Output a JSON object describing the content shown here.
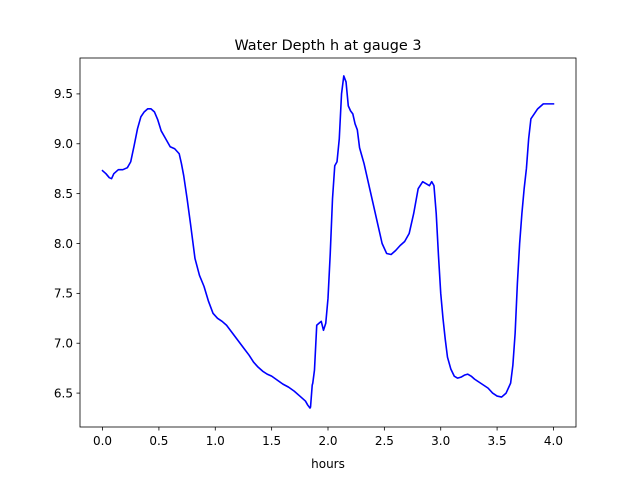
{
  "chart_data": {
    "type": "line",
    "title": "Water Depth h at gauge 3",
    "xlabel": "hours",
    "ylabel": "",
    "xlim": [
      -0.2,
      4.2
    ],
    "ylim": [
      6.16,
      9.86
    ],
    "xticks": [
      0.0,
      0.5,
      1.0,
      1.5,
      2.0,
      2.5,
      3.0,
      3.5,
      4.0
    ],
    "xtick_labels": [
      "0.0",
      "0.5",
      "1.0",
      "1.5",
      "2.0",
      "2.5",
      "3.0",
      "3.5",
      "4.0"
    ],
    "yticks": [
      6.5,
      7.0,
      7.5,
      8.0,
      8.5,
      9.0,
      9.5
    ],
    "ytick_labels": [
      "6.5",
      "7.0",
      "7.5",
      "8.0",
      "8.5",
      "9.0",
      "9.5"
    ],
    "grid": false,
    "legend": "none",
    "series": [
      {
        "color": "#0000ff",
        "x": [
          0.0,
          0.03,
          0.06,
          0.08,
          0.1,
          0.14,
          0.18,
          0.22,
          0.25,
          0.28,
          0.31,
          0.34,
          0.37,
          0.4,
          0.43,
          0.46,
          0.49,
          0.52,
          0.56,
          0.6,
          0.64,
          0.68,
          0.7,
          0.72,
          0.75,
          0.78,
          0.82,
          0.86,
          0.9,
          0.94,
          0.98,
          1.02,
          1.06,
          1.1,
          1.14,
          1.18,
          1.22,
          1.26,
          1.3,
          1.34,
          1.38,
          1.42,
          1.46,
          1.5,
          1.55,
          1.6,
          1.65,
          1.7,
          1.75,
          1.8,
          1.82,
          1.84,
          1.845,
          1.86,
          1.865,
          1.88,
          1.9,
          1.92,
          1.94,
          1.96,
          1.98,
          2.0,
          2.02,
          2.04,
          2.06,
          2.08,
          2.1,
          2.12,
          2.14,
          2.16,
          2.18,
          2.2,
          2.22,
          2.24,
          2.26,
          2.27,
          2.28,
          2.3,
          2.32,
          2.34,
          2.37,
          2.4,
          2.44,
          2.48,
          2.52,
          2.56,
          2.6,
          2.64,
          2.68,
          2.72,
          2.76,
          2.8,
          2.84,
          2.87,
          2.9,
          2.92,
          2.94,
          2.96,
          2.98,
          3.0,
          3.02,
          3.04,
          3.06,
          3.09,
          3.12,
          3.15,
          3.18,
          3.21,
          3.24,
          3.27,
          3.3,
          3.34,
          3.38,
          3.42,
          3.46,
          3.5,
          3.54,
          3.58,
          3.62,
          3.64,
          3.66,
          3.68,
          3.7,
          3.72,
          3.74,
          3.76,
          3.78,
          3.8,
          3.83,
          3.86,
          3.89,
          3.91,
          3.93,
          3.95,
          3.97,
          3.99,
          4.0
        ],
        "y": [
          8.73,
          8.7,
          8.66,
          8.65,
          8.7,
          8.74,
          8.74,
          8.76,
          8.82,
          8.98,
          9.15,
          9.27,
          9.32,
          9.35,
          9.35,
          9.32,
          9.24,
          9.13,
          9.05,
          8.97,
          8.95,
          8.9,
          8.8,
          8.68,
          8.45,
          8.2,
          7.85,
          7.68,
          7.57,
          7.42,
          7.3,
          7.25,
          7.22,
          7.18,
          7.12,
          7.06,
          7.0,
          6.94,
          6.88,
          6.81,
          6.76,
          6.72,
          6.69,
          6.67,
          6.63,
          6.59,
          6.56,
          6.52,
          6.47,
          6.42,
          6.38,
          6.35,
          6.36,
          6.58,
          6.6,
          6.73,
          7.18,
          7.2,
          7.22,
          7.13,
          7.2,
          7.45,
          7.9,
          8.45,
          8.78,
          8.82,
          9.05,
          9.5,
          9.68,
          9.62,
          9.38,
          9.33,
          9.3,
          9.2,
          9.14,
          9.05,
          8.96,
          8.88,
          8.8,
          8.7,
          8.55,
          8.4,
          8.2,
          8.0,
          7.9,
          7.89,
          7.93,
          7.98,
          8.02,
          8.1,
          8.3,
          8.55,
          8.62,
          8.6,
          8.58,
          8.62,
          8.58,
          8.3,
          7.88,
          7.5,
          7.25,
          7.04,
          6.86,
          6.74,
          6.67,
          6.65,
          6.66,
          6.68,
          6.69,
          6.67,
          6.64,
          6.61,
          6.58,
          6.55,
          6.5,
          6.47,
          6.46,
          6.5,
          6.6,
          6.78,
          7.1,
          7.6,
          8.0,
          8.3,
          8.55,
          8.75,
          9.05,
          9.25,
          9.3,
          9.35,
          9.38,
          9.4,
          9.4,
          9.4,
          9.4,
          9.4,
          9.4
        ]
      }
    ]
  }
}
